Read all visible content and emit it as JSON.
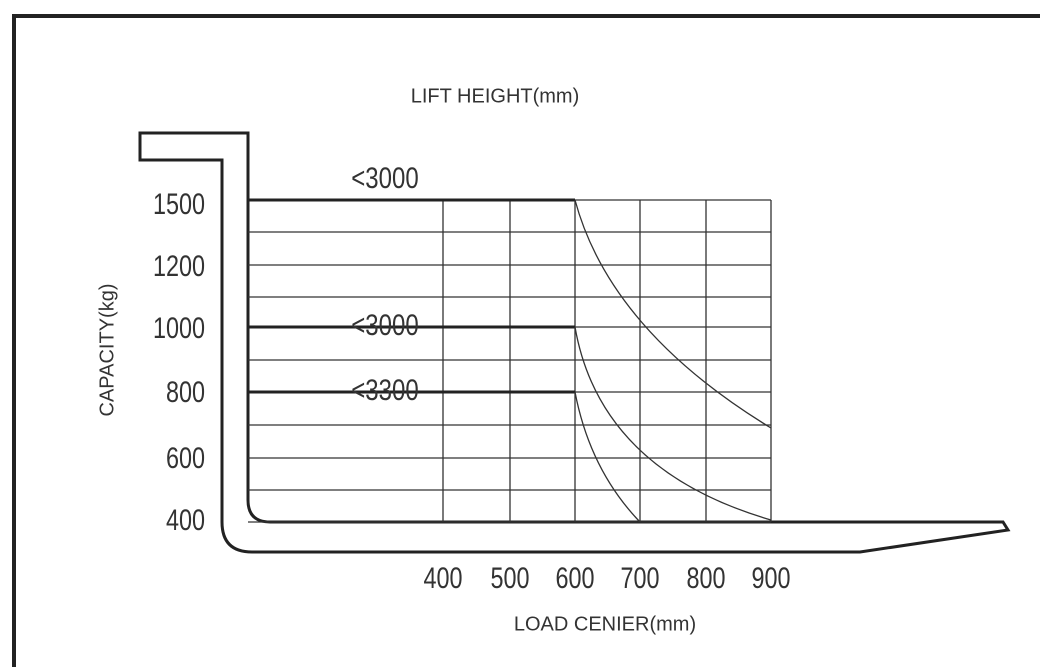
{
  "title": "LIFT HEIGHT(mm)",
  "y_axis": {
    "label": "CAPACITY(kg)",
    "ticks": [
      "1500",
      "1200",
      "1000",
      "800",
      "600",
      "400"
    ]
  },
  "x_axis": {
    "label": "LOAD CENIER(mm)",
    "ticks": [
      "400",
      "500",
      "600",
      "700",
      "800",
      "900"
    ]
  },
  "lines": [
    {
      "label": "<3000"
    },
    {
      "label": "<3000"
    },
    {
      "label": "<3300"
    }
  ]
}
